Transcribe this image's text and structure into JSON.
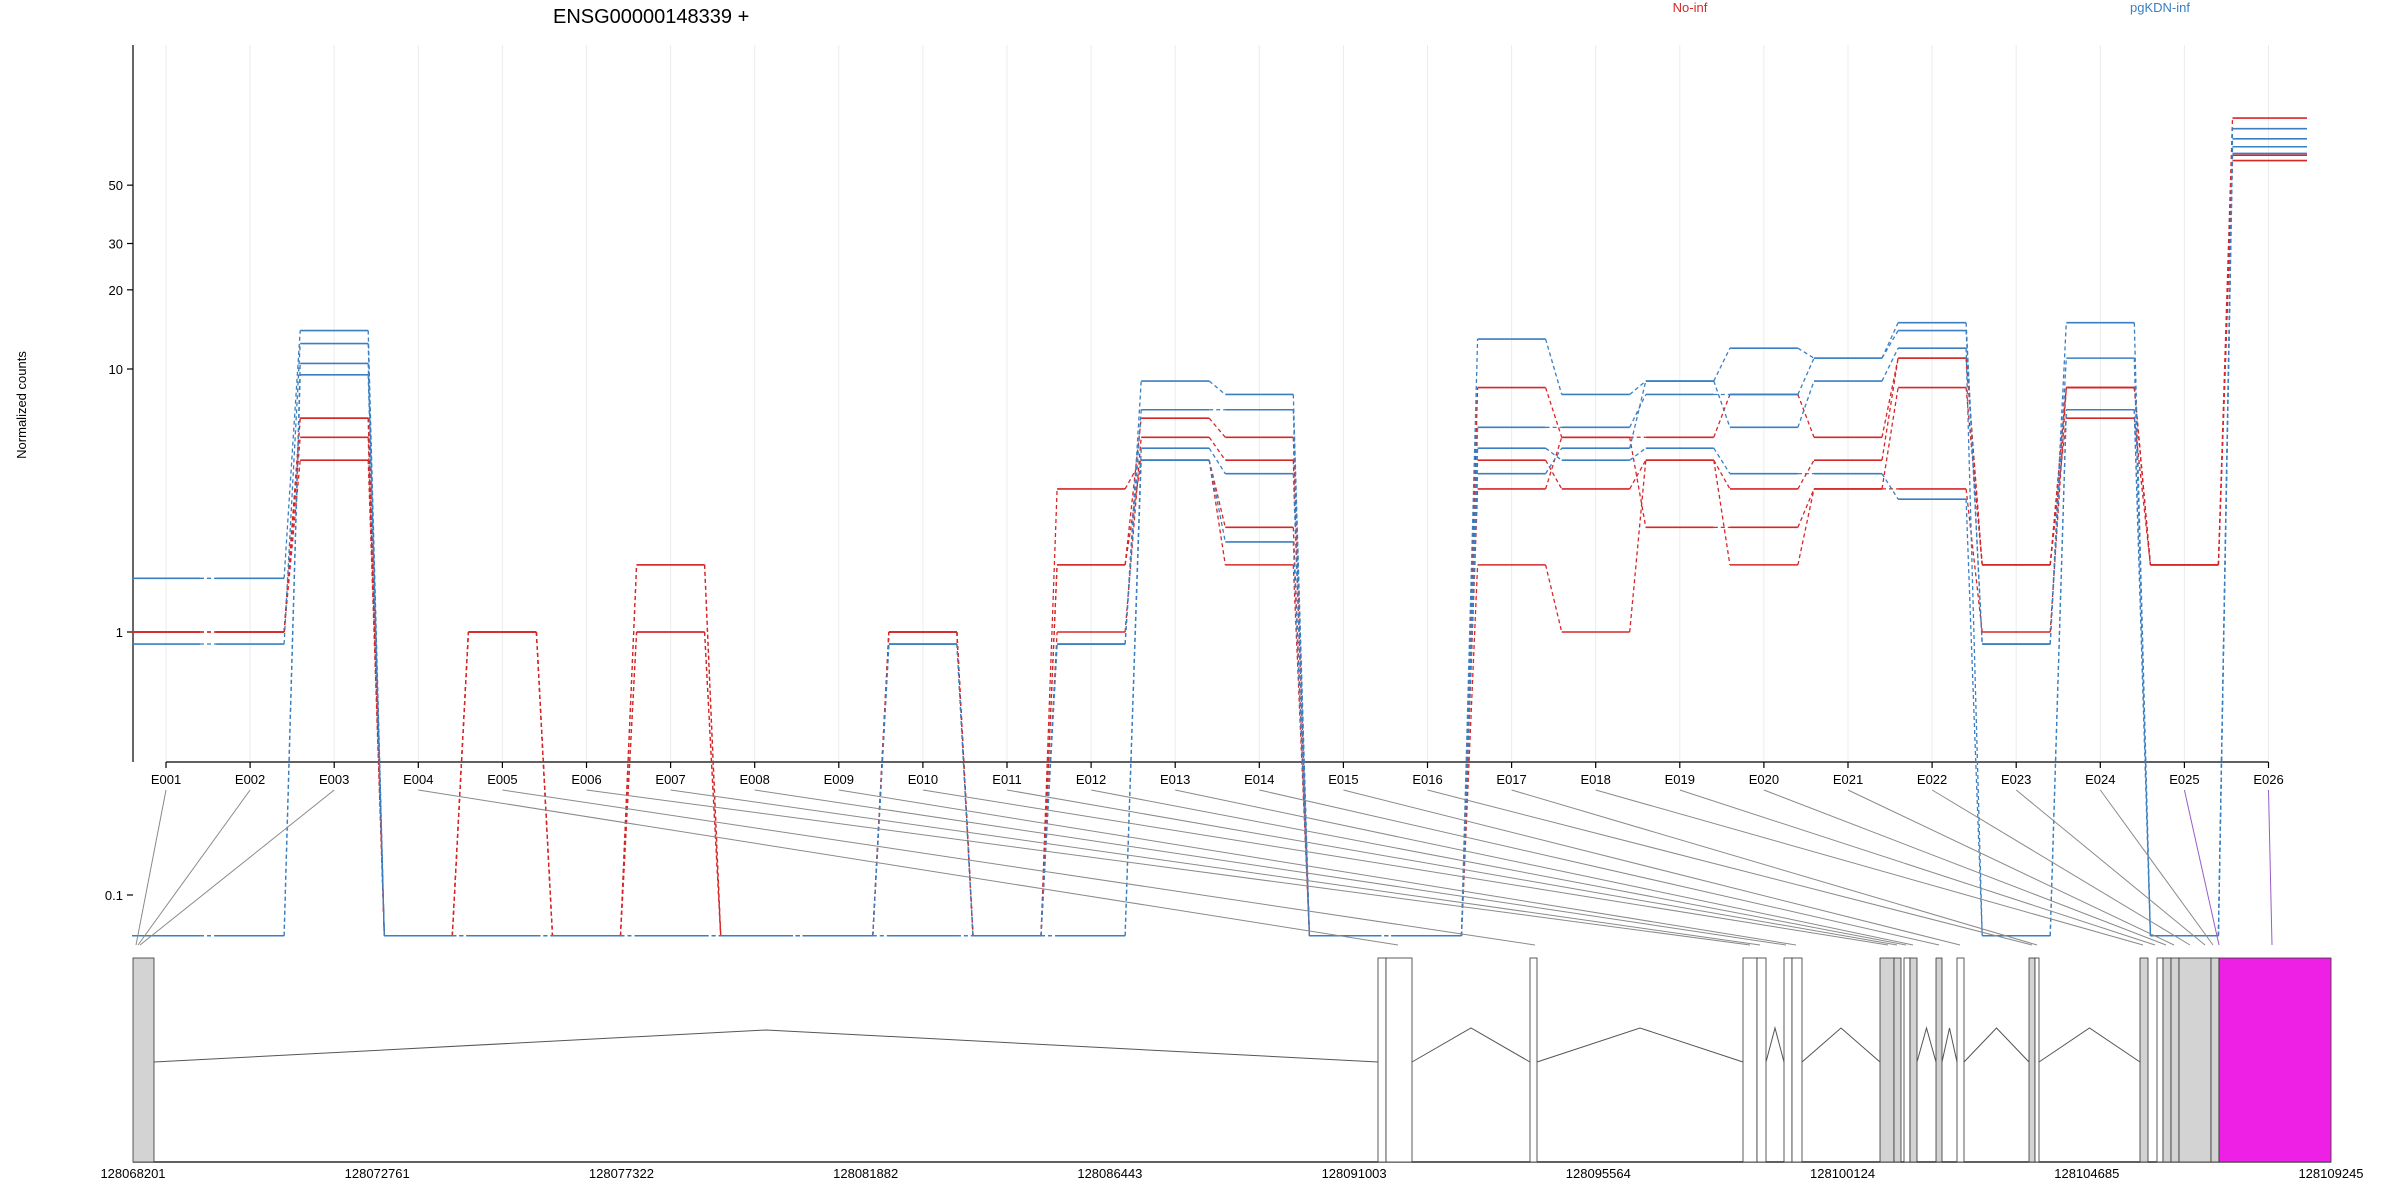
{
  "chart_data": {
    "type": "line",
    "title": "ENSG00000148339 +",
    "ylabel": "Normalized counts",
    "y_scale": "log",
    "y_ticks": [
      0.1,
      1,
      10,
      20,
      30,
      50
    ],
    "grid": true,
    "legend_placement": "top",
    "categories": [
      "E001",
      "E002",
      "E003",
      "E004",
      "E005",
      "E006",
      "E007",
      "E008",
      "E009",
      "E010",
      "E011",
      "E012",
      "E013",
      "E014",
      "E015",
      "E016",
      "E017",
      "E018",
      "E019",
      "E020",
      "E021",
      "E022",
      "E023",
      "E024",
      "E025",
      "E026"
    ],
    "series": [
      {
        "name": "No-inf",
        "color": "#d62728",
        "values": [
          1.0,
          1.0,
          6.5,
          0.07,
          1.0,
          0.07,
          1.8,
          0.07,
          0.07,
          1.0,
          0.07,
          1.8,
          6.5,
          5.5,
          0.07,
          0.07,
          8.5,
          5.5,
          5.5,
          8.0,
          5.5,
          11.0,
          1.8,
          8.5,
          1.8,
          90
        ]
      },
      {
        "name": "No-inf",
        "color": "#d62728",
        "values": [
          1.0,
          1.0,
          5.5,
          0.07,
          1.0,
          0.07,
          1.0,
          0.07,
          0.07,
          1.0,
          0.07,
          1.0,
          5.5,
          4.5,
          0.07,
          0.07,
          4.5,
          3.5,
          4.5,
          3.5,
          4.5,
          11.0,
          1.8,
          8.5,
          1.8,
          70
        ]
      },
      {
        "name": "No-inf",
        "color": "#d62728",
        "values": [
          1.0,
          1.0,
          4.5,
          0.07,
          1.0,
          0.07,
          1.8,
          0.07,
          0.07,
          1.0,
          0.07,
          3.5,
          4.5,
          2.5,
          0.07,
          0.07,
          3.5,
          5.5,
          2.5,
          2.5,
          3.5,
          8.5,
          1.8,
          6.5,
          1.8,
          65
        ]
      },
      {
        "name": "No-inf",
        "color": "#d62728",
        "values": [
          1.0,
          1.0,
          6.5,
          0.07,
          1.0,
          0.07,
          1.0,
          0.07,
          0.07,
          1.0,
          0.07,
          1.8,
          4.5,
          1.8,
          0.07,
          0.07,
          1.8,
          1.0,
          4.5,
          1.8,
          3.5,
          3.5,
          1.0,
          8.5,
          1.8,
          62
        ]
      },
      {
        "name": "pgKDN-inf",
        "color": "#3a7fc1",
        "values": [
          1.6,
          1.6,
          14.0,
          0.07,
          0.07,
          0.07,
          0.07,
          0.07,
          0.07,
          0.9,
          0.07,
          0.9,
          9.0,
          8.0,
          0.07,
          0.07,
          13.0,
          8.0,
          9.0,
          12.0,
          11.0,
          15.0,
          0.9,
          15.0,
          0.07,
          82
        ]
      },
      {
        "name": "pgKDN-inf",
        "color": "#3a7fc1",
        "values": [
          0.9,
          0.9,
          12.5,
          0.07,
          0.07,
          0.07,
          0.07,
          0.07,
          0.07,
          0.9,
          0.07,
          0.9,
          7.0,
          7.0,
          0.07,
          0.07,
          6.0,
          6.0,
          8.0,
          8.0,
          11.0,
          14.0,
          0.9,
          11.0,
          0.07,
          75
        ]
      },
      {
        "name": "pgKDN-inf",
        "color": "#3a7fc1",
        "values": [
          0.07,
          0.07,
          10.5,
          0.07,
          0.07,
          0.07,
          0.07,
          0.07,
          0.07,
          0.07,
          0.07,
          0.07,
          5.0,
          4.0,
          0.07,
          0.07,
          4.0,
          5.0,
          9.0,
          6.0,
          9.0,
          12.0,
          0.07,
          7.0,
          0.07,
          70
        ]
      },
      {
        "name": "pgKDN-inf",
        "color": "#3a7fc1",
        "values": [
          0.07,
          0.07,
          9.5,
          0.07,
          0.07,
          0.07,
          0.07,
          0.07,
          0.07,
          0.07,
          0.07,
          0.07,
          4.5,
          2.2,
          0.07,
          0.07,
          5.0,
          4.5,
          5.0,
          4.0,
          4.0,
          3.2,
          0.07,
          7.0,
          0.07,
          66
        ]
      }
    ]
  },
  "gene_model": {
    "coordinate_labels": [
      "128068201",
      "128072761",
      "128077322",
      "128081882",
      "128086443",
      "128091003",
      "128095564",
      "128100124",
      "128104685",
      "128109245"
    ],
    "exon_fill": "#d3d3d3",
    "highlight_fill": "#ee20e6",
    "highlight_exon": "E026"
  }
}
